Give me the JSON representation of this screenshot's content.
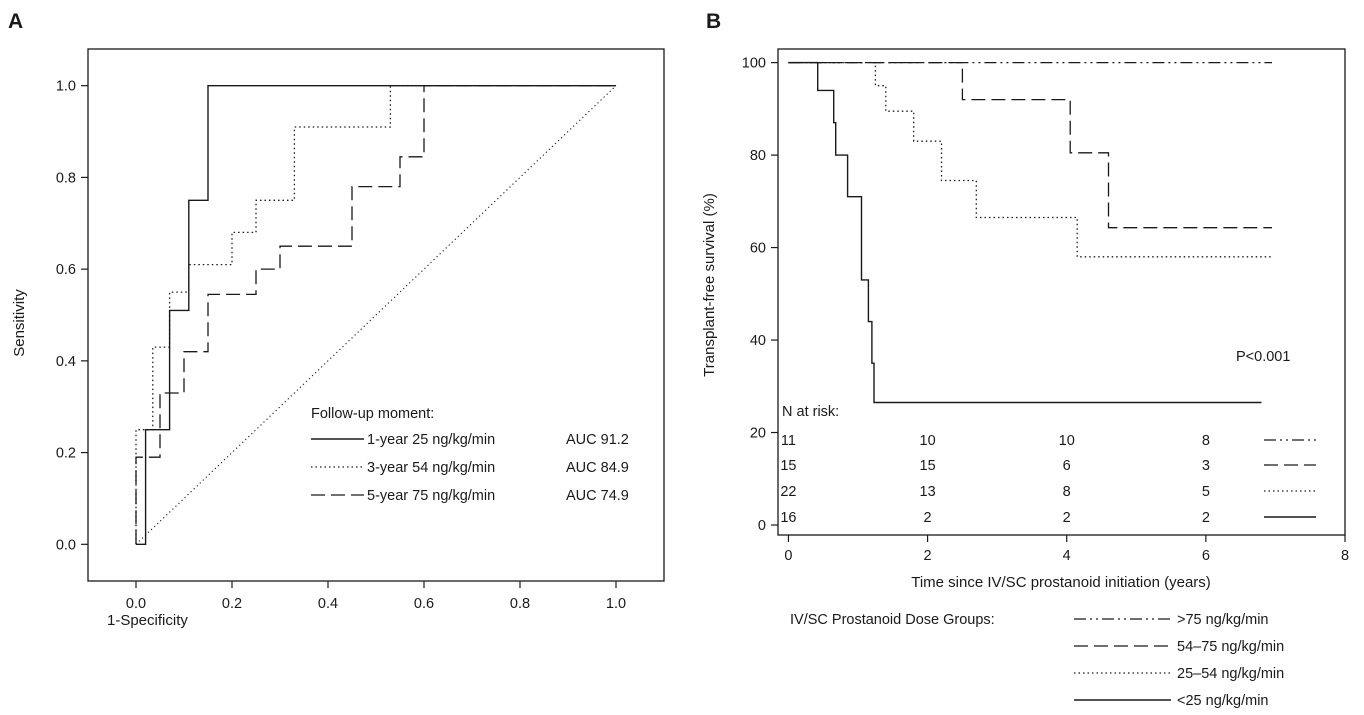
{
  "chart_data": [
    {
      "type": "line",
      "panel_label": "A",
      "xlabel": "1-Specificity",
      "ylabel": "Sensitivity",
      "xlim": [
        -0.1,
        1.1
      ],
      "ylim": [
        -0.08,
        1.08
      ],
      "xticks": [
        "0.0",
        "0.2",
        "0.4",
        "0.6",
        "0.8",
        "1.0"
      ],
      "yticks": [
        "0.0",
        "0.2",
        "0.4",
        "0.6",
        "0.8",
        "1.0"
      ],
      "grid": false,
      "legend_title": "Follow-up moment:",
      "legend_position": "bottom-right",
      "series": [
        {
          "name": "1-year 25 ng/kg/min",
          "auc": "AUC 91.2",
          "dash": "solid",
          "points": [
            [
              0,
              0
            ],
            [
              0.02,
              0
            ],
            [
              0.02,
              0.25
            ],
            [
              0.07,
              0.25
            ],
            [
              0.07,
              0.51
            ],
            [
              0.11,
              0.51
            ],
            [
              0.11,
              0.75
            ],
            [
              0.15,
              0.75
            ],
            [
              0.15,
              1.0
            ],
            [
              1.0,
              1.0
            ]
          ]
        },
        {
          "name": "3-year 54 ng/kg/min",
          "auc": "AUC 84.9",
          "dash": "dotted",
          "points": [
            [
              0,
              0
            ],
            [
              0,
              0.25
            ],
            [
              0.035,
              0.25
            ],
            [
              0.035,
              0.43
            ],
            [
              0.07,
              0.43
            ],
            [
              0.07,
              0.55
            ],
            [
              0.11,
              0.55
            ],
            [
              0.11,
              0.61
            ],
            [
              0.2,
              0.61
            ],
            [
              0.2,
              0.68
            ],
            [
              0.25,
              0.68
            ],
            [
              0.25,
              0.75
            ],
            [
              0.33,
              0.75
            ],
            [
              0.33,
              0.91
            ],
            [
              0.53,
              0.91
            ],
            [
              0.53,
              1.0
            ],
            [
              1.0,
              1.0
            ]
          ]
        },
        {
          "name": "5-year 75 ng/kg/min",
          "auc": "AUC 74.9",
          "dash": "dashed",
          "points": [
            [
              0,
              0
            ],
            [
              0,
              0.19
            ],
            [
              0.05,
              0.19
            ],
            [
              0.05,
              0.33
            ],
            [
              0.1,
              0.33
            ],
            [
              0.1,
              0.42
            ],
            [
              0.15,
              0.42
            ],
            [
              0.15,
              0.545
            ],
            [
              0.25,
              0.545
            ],
            [
              0.25,
              0.6
            ],
            [
              0.3,
              0.6
            ],
            [
              0.3,
              0.65
            ],
            [
              0.45,
              0.65
            ],
            [
              0.45,
              0.78
            ],
            [
              0.55,
              0.78
            ],
            [
              0.55,
              0.845
            ],
            [
              0.6,
              0.845
            ],
            [
              0.6,
              1.0
            ],
            [
              1.0,
              1.0
            ]
          ]
        },
        {
          "name": "",
          "dash": "dotted-thin",
          "points": [
            [
              0,
              0
            ],
            [
              1,
              1
            ]
          ]
        }
      ]
    },
    {
      "type": "line",
      "panel_label": "B",
      "xlabel": "Time since IV/SC prostanoid initiation (years)",
      "ylabel": "Transplant-free survival (%)",
      "xlim": [
        -0.15,
        8
      ],
      "ylim": [
        0,
        101
      ],
      "xticks": [
        "0",
        "2",
        "4",
        "6",
        "8"
      ],
      "yticks": [
        "0",
        "20",
        "40",
        "60",
        "80",
        "100"
      ],
      "grid": false,
      "annotation": "P<0.001",
      "series": [
        {
          "name": ">75 ng/kg/min",
          "dash": "dashdotdot",
          "points": [
            [
              0,
              100
            ],
            [
              6.95,
              100
            ]
          ]
        },
        {
          "name": "54–75 ng/kg/min",
          "dash": "dashed",
          "points": [
            [
              0,
              100
            ],
            [
              2.5,
              100
            ],
            [
              2.5,
              92
            ],
            [
              4.05,
              92
            ],
            [
              4.05,
              80.5
            ],
            [
              4.6,
              80.5
            ],
            [
              4.6,
              64.3
            ],
            [
              6.95,
              64.3
            ]
          ]
        },
        {
          "name": "25–54 ng/kg/min",
          "dash": "dotted",
          "points": [
            [
              0,
              100
            ],
            [
              1.25,
              100
            ],
            [
              1.25,
              95
            ],
            [
              1.4,
              95
            ],
            [
              1.4,
              89.5
            ],
            [
              1.8,
              89.5
            ],
            [
              1.8,
              83
            ],
            [
              2.2,
              83
            ],
            [
              2.2,
              74.5
            ],
            [
              2.7,
              74.5
            ],
            [
              2.7,
              66.5
            ],
            [
              4.15,
              66.5
            ],
            [
              4.15,
              58
            ],
            [
              6.95,
              58
            ]
          ]
        },
        {
          "name": "<25 ng/kg/min",
          "dash": "solid",
          "points": [
            [
              0,
              100
            ],
            [
              0.42,
              100
            ],
            [
              0.42,
              94
            ],
            [
              0.65,
              94
            ],
            [
              0.65,
              87
            ],
            [
              0.68,
              87
            ],
            [
              0.68,
              80
            ],
            [
              0.85,
              80
            ],
            [
              0.85,
              71
            ],
            [
              1.05,
              71
            ],
            [
              1.05,
              53
            ],
            [
              1.15,
              53
            ],
            [
              1.15,
              44
            ],
            [
              1.2,
              44
            ],
            [
              1.2,
              35
            ],
            [
              1.23,
              35
            ],
            [
              1.23,
              26.5
            ],
            [
              6.8,
              26.5
            ]
          ]
        }
      ],
      "risk_table": {
        "title": "N at risk:",
        "times": [
          0,
          2,
          4,
          6
        ],
        "rows": [
          {
            "counts": [
              "11",
              "10",
              "10",
              "8"
            ],
            "dash": "dashdotdot"
          },
          {
            "counts": [
              "15",
              "15",
              "6",
              "3"
            ],
            "dash": "dashed"
          },
          {
            "counts": [
              "22",
              "13",
              "8",
              "5"
            ],
            "dash": "dotted"
          },
          {
            "counts": [
              "16",
              "2",
              "2",
              "2"
            ],
            "dash": "solid"
          }
        ]
      },
      "legend_title": "IV/SC Prostanoid Dose Groups:",
      "legend_position": "bottom"
    }
  ]
}
